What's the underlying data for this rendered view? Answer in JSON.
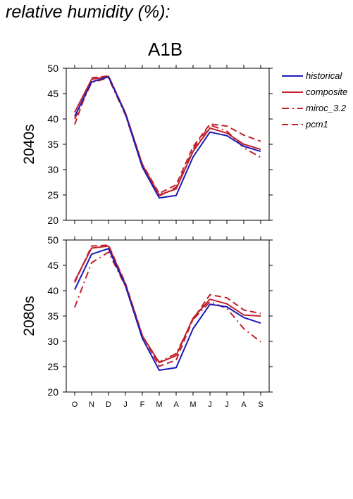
{
  "page_title": "relative humidity (%):",
  "scenario": "A1B",
  "colors": {
    "historical": "#1a1ab4",
    "future": "#c0202a"
  },
  "legend": [
    {
      "name": "historical",
      "color": "#1a1ab4",
      "dash": "solid"
    },
    {
      "name": "composite",
      "color": "#c0202a",
      "dash": "solid"
    },
    {
      "name": "miroc_3.2",
      "color": "#c0202a",
      "dash": "dashdot"
    },
    {
      "name": "pcm1",
      "color": "#c0202a",
      "dash": "dash"
    }
  ],
  "chart_data": [
    {
      "type": "line",
      "row_label": "2040s",
      "categories": [
        "O",
        "N",
        "D",
        "J",
        "F",
        "M",
        "A",
        "M",
        "J",
        "J",
        "A",
        "S"
      ],
      "ylim": [
        20,
        50
      ],
      "yticks": [
        20,
        25,
        30,
        35,
        40,
        45,
        50
      ],
      "series": [
        {
          "name": "historical",
          "values": [
            40.5,
            47.3,
            48.3,
            41.0,
            30.5,
            24.4,
            24.9,
            32.5,
            37.4,
            36.7,
            34.6,
            33.6
          ]
        },
        {
          "name": "composite",
          "values": [
            41.3,
            47.8,
            48.4,
            41.2,
            31.0,
            25.0,
            26.2,
            33.6,
            38.2,
            37.2,
            35.0,
            34.0
          ]
        },
        {
          "name": "miroc_3.2",
          "values": [
            40.0,
            47.2,
            48.1,
            40.8,
            30.6,
            24.8,
            26.5,
            34.0,
            38.8,
            37.6,
            34.3,
            32.4
          ]
        },
        {
          "name": "pcm1",
          "values": [
            38.9,
            48.1,
            48.5,
            41.2,
            31.1,
            25.3,
            27.0,
            34.5,
            39.0,
            38.6,
            36.8,
            35.6
          ]
        }
      ]
    },
    {
      "type": "line",
      "row_label": "2080s",
      "categories": [
        "O",
        "N",
        "D",
        "J",
        "F",
        "M",
        "A",
        "M",
        "J",
        "J",
        "A",
        "S"
      ],
      "ylim": [
        20,
        50
      ],
      "yticks": [
        20,
        25,
        30,
        35,
        40,
        45,
        50
      ],
      "series": [
        {
          "name": "historical",
          "values": [
            40.2,
            47.2,
            48.3,
            41.0,
            30.6,
            24.3,
            24.8,
            32.5,
            37.3,
            36.8,
            34.7,
            33.6
          ]
        },
        {
          "name": "composite",
          "values": [
            41.9,
            48.4,
            48.8,
            41.3,
            31.1,
            25.8,
            27.2,
            34.6,
            38.3,
            37.4,
            35.2,
            35.0
          ]
        },
        {
          "name": "miroc_3.2",
          "values": [
            36.7,
            45.5,
            47.6,
            40.9,
            31.0,
            25.9,
            27.6,
            34.3,
            37.8,
            36.5,
            32.5,
            29.9
          ]
        },
        {
          "name": "pcm1",
          "values": [
            41.6,
            48.8,
            49.0,
            41.5,
            31.2,
            25.1,
            26.3,
            34.4,
            39.2,
            38.6,
            36.2,
            35.5
          ]
        }
      ]
    }
  ]
}
